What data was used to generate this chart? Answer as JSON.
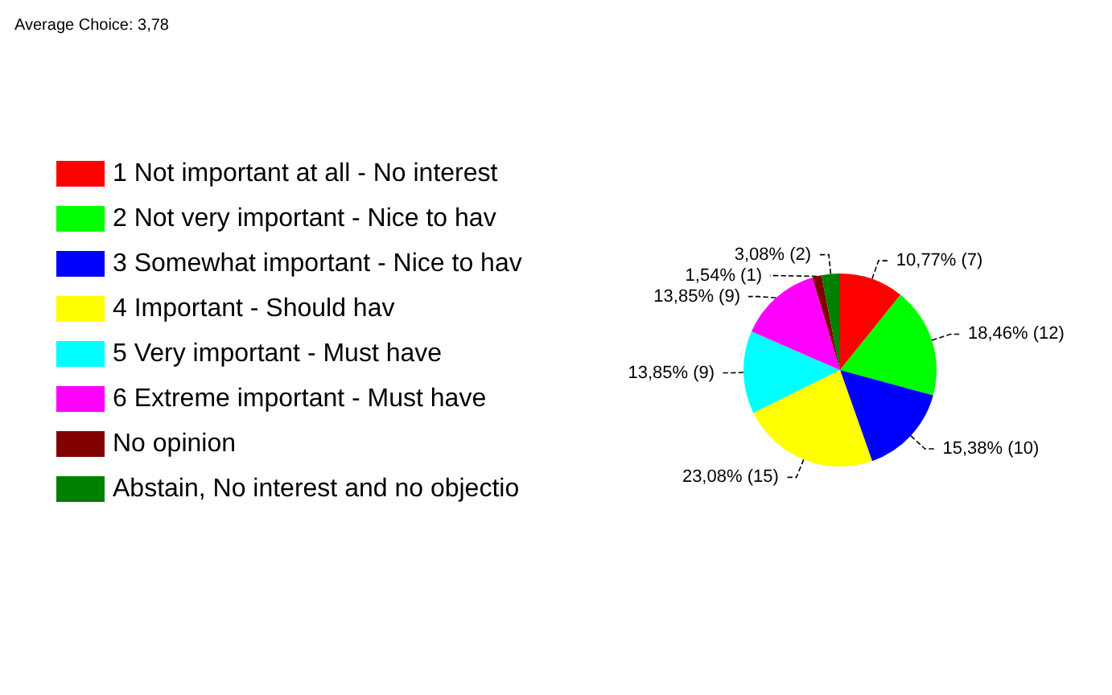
{
  "chart_data": {
    "type": "pie",
    "title": "Average Choice: 3,78",
    "categories": [
      "1 Not important at all - No interest",
      "2 Not very important - Nice to hav",
      "3 Somewhat important - Nice to hav",
      "4 Important - Should hav",
      "5 Very important - Must have",
      "6 Extreme important - Must have",
      "No opinion",
      "Abstain, No interest and no objectio"
    ],
    "values": [
      10.77,
      18.46,
      15.38,
      23.08,
      13.85,
      13.85,
      1.54,
      3.08
    ],
    "value_labels": [
      "10,77% (7)",
      "18,46% (12)",
      "15,38% (10)",
      "23,08% (15)",
      "13,85% (9)",
      "13,85% (9)",
      "1,54% (1)",
      "3,08% (2)"
    ],
    "colors": [
      "#ff0000",
      "#00ff00",
      "#0000ff",
      "#ffff00",
      "#00ffff",
      "#ff00ff",
      "#800000",
      "#008000"
    ],
    "legend": "left"
  }
}
